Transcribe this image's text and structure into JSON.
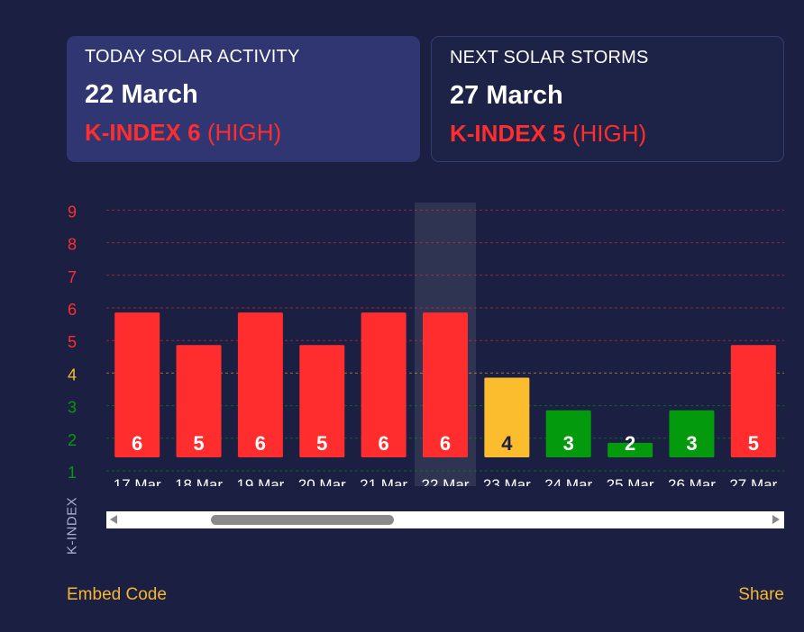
{
  "cards": {
    "today": {
      "heading": "TODAY SOLAR ACTIVITY",
      "date": "22 March",
      "kindex": "K-INDEX 6",
      "level": "(HIGH)"
    },
    "next": {
      "heading": "NEXT SOLAR STORMS",
      "date": "27 March",
      "kindex": "K-INDEX 5",
      "level": "(HIGH)"
    }
  },
  "chart_data": {
    "type": "bar",
    "categories": [
      "17 Mar",
      "18 Mar",
      "19 Mar",
      "20 Mar",
      "21 Mar",
      "22 Mar",
      "23 Mar",
      "24 Mar",
      "25 Mar",
      "26 Mar",
      "27 Mar"
    ],
    "values": [
      6,
      5,
      6,
      5,
      6,
      6,
      4,
      3,
      2,
      3,
      5
    ],
    "ylabel": "K-INDEX",
    "yticks": [
      1,
      2,
      3,
      4,
      5,
      6,
      7,
      8,
      9
    ],
    "ylim": [
      1,
      9
    ],
    "highlighted_category": "22 Mar",
    "grid": true,
    "colors": {
      "high": "#ff2d2d",
      "moderate": "#fbbd2e",
      "low": "#039a0d"
    }
  },
  "links": {
    "embed": "Embed Code",
    "share": "Share"
  }
}
